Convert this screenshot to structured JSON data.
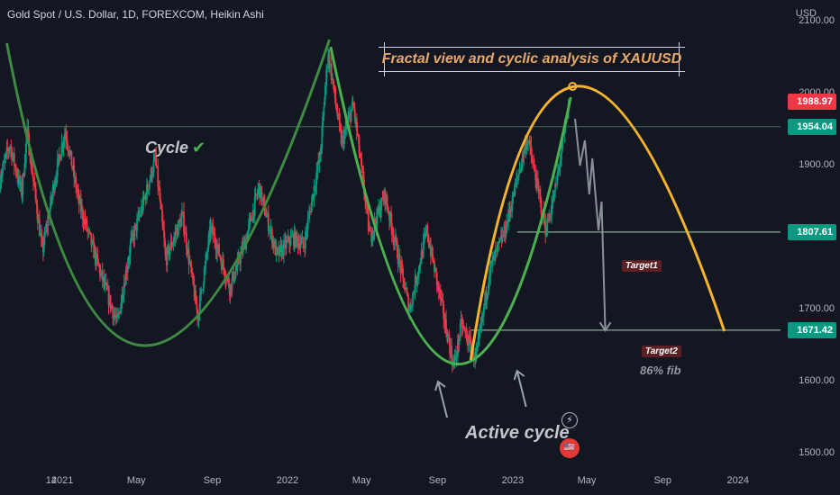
{
  "header": {
    "symbol": "Gold Spot / U.S. Dollar, 1D, FOREXCOM, Heikin Ashi",
    "currency": "USD"
  },
  "annotations": {
    "title": "Fractal view and cyclic analysis of XAUUSD",
    "cycle_label": "Cycle",
    "cycle_check": "✔",
    "active_cycle": "Active cycle",
    "target1": "Target1",
    "target2": "Target2",
    "fib": "86% fib"
  },
  "price_tags": [
    {
      "label": "1988.97",
      "value": 1988.97,
      "color": "#f23645"
    },
    {
      "label": "1954.04",
      "value": 1954.04,
      "color": "#089981"
    },
    {
      "label": "1807.61",
      "value": 1807.61,
      "color": "#089981"
    },
    {
      "label": "1671.42",
      "value": 1671.42,
      "color": "#089981"
    }
  ],
  "icons": [
    "lightning-icon",
    "flag-icon"
  ],
  "colors": {
    "background": "#131722",
    "bull": "#089981",
    "bear": "#f23645",
    "cycle_green": "#4caf50",
    "active_yellow": "#f5b32f",
    "projection": "#8a9098"
  },
  "chart_data": {
    "type": "candlestick",
    "style": "Heikin Ashi",
    "x_type": "date",
    "x_range": [
      "2020-09-22",
      "2024-03-10"
    ],
    "y_range": [
      1480,
      2130
    ],
    "y_ticks": [
      {
        "label": "2100.00",
        "value": 2100
      },
      {
        "label": "2000.00",
        "value": 2000
      },
      {
        "label": "1900.00",
        "value": 1900
      },
      {
        "label": "1800.00",
        "value": 1800
      },
      {
        "label": "1700.00",
        "value": 1700
      },
      {
        "label": "1600.00",
        "value": 1600
      },
      {
        "label": "1500.00",
        "value": 1500
      }
    ],
    "x_ticks": [
      {
        "label": "14",
        "date": "2020-12-14"
      },
      {
        "label": "2021",
        "date": "2021-01-01"
      },
      {
        "label": "May",
        "date": "2021-05-01"
      },
      {
        "label": "Sep",
        "date": "2021-09-01"
      },
      {
        "label": "2022",
        "date": "2022-01-01"
      },
      {
        "label": "May",
        "date": "2022-05-01"
      },
      {
        "label": "Sep",
        "date": "2022-09-01"
      },
      {
        "label": "2023",
        "date": "2023-01-01"
      },
      {
        "label": "May",
        "date": "2023-05-01"
      },
      {
        "label": "Sep",
        "date": "2023-09-01"
      },
      {
        "label": "2024",
        "date": "2024-01-01"
      }
    ],
    "price_path": [
      [
        "2020-09-22",
        1880
      ],
      [
        "2020-10-08",
        1930
      ],
      [
        "2020-10-28",
        1860
      ],
      [
        "2020-11-05",
        1950
      ],
      [
        "2020-11-30",
        1780
      ],
      [
        "2020-12-20",
        1880
      ],
      [
        "2021-01-06",
        1950
      ],
      [
        "2021-01-28",
        1850
      ],
      [
        "2021-02-25",
        1770
      ],
      [
        "2021-03-12",
        1730
      ],
      [
        "2021-03-31",
        1680
      ],
      [
        "2021-04-22",
        1790
      ],
      [
        "2021-05-10",
        1840
      ],
      [
        "2021-06-01",
        1910
      ],
      [
        "2021-06-18",
        1770
      ],
      [
        "2021-07-15",
        1830
      ],
      [
        "2021-08-09",
        1690
      ],
      [
        "2021-08-30",
        1815
      ],
      [
        "2021-09-30",
        1730
      ],
      [
        "2021-10-25",
        1795
      ],
      [
        "2021-11-16",
        1870
      ],
      [
        "2021-12-15",
        1775
      ],
      [
        "2022-01-10",
        1800
      ],
      [
        "2022-01-28",
        1790
      ],
      [
        "2022-02-24",
        1920
      ],
      [
        "2022-03-08",
        2060
      ],
      [
        "2022-03-30",
        1930
      ],
      [
        "2022-04-18",
        1985
      ],
      [
        "2022-05-15",
        1800
      ],
      [
        "2022-06-08",
        1860
      ],
      [
        "2022-07-18",
        1700
      ],
      [
        "2022-08-15",
        1810
      ],
      [
        "2022-09-28",
        1620
      ],
      [
        "2022-10-10",
        1680
      ],
      [
        "2022-11-03",
        1630
      ],
      [
        "2022-11-25",
        1755
      ],
      [
        "2022-12-20",
        1810
      ],
      [
        "2023-01-25",
        1940
      ],
      [
        "2023-02-24",
        1810
      ],
      [
        "2023-03-10",
        1860
      ],
      [
        "2023-04-03",
        1988
      ]
    ],
    "series": [
      {
        "name": "Cycle",
        "color": "#4caf50",
        "points": [
          [
            "2020-10-03",
            2070
          ],
          [
            "2021-05-16",
            1650
          ],
          [
            "2022-03-10",
            2075
          ]
        ]
      },
      {
        "name": "Active cycle",
        "color": "#4caf50",
        "points": [
          [
            "2022-03-12",
            2065
          ],
          [
            "2022-09-27",
            1625
          ],
          [
            "2023-04-05",
            1995
          ]
        ]
      },
      {
        "name": "Active cycle arc",
        "color": "#f5b32f",
        "points": [
          [
            "2022-10-25",
            1630
          ],
          [
            "2023-04-12",
            2010
          ],
          [
            "2023-12-10",
            1670
          ]
        ]
      }
    ],
    "levels": [
      {
        "value": 1954.04,
        "from": "2020-09-22",
        "to": "2024-03-10"
      },
      {
        "value": 1807.61,
        "from": "2023-01-08",
        "to": "2024-03-10",
        "label": "Target1"
      },
      {
        "value": 1671.42,
        "from": "2022-10-25",
        "to": "2024-03-10",
        "label": "Target2"
      }
    ],
    "projection": [
      [
        "2023-04-12",
        1965
      ],
      [
        "2023-04-20",
        1900
      ],
      [
        "2023-04-28",
        1935
      ],
      [
        "2023-05-05",
        1860
      ],
      [
        "2023-05-10",
        1910
      ],
      [
        "2023-05-20",
        1810
      ],
      [
        "2023-05-25",
        1850
      ],
      [
        "2023-05-31",
        1671
      ]
    ]
  }
}
